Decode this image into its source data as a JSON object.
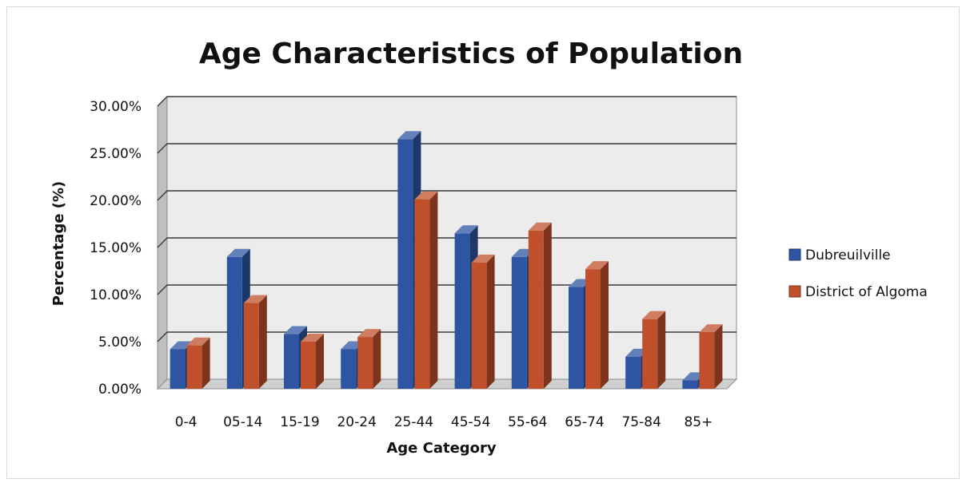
{
  "chart_data": {
    "type": "bar",
    "title": "Age Characteristics of Population",
    "xlabel": "Age Category",
    "ylabel": "Percentage (%)",
    "categories": [
      "0-4",
      "05-14",
      "15-19",
      "20-24",
      "25-44",
      "45-54",
      "55-64",
      "65-74",
      "75-84",
      "85+"
    ],
    "series": [
      {
        "name": "Dubreuilville",
        "color": "#2e55a1",
        "values": [
          4.2,
          14.0,
          5.8,
          4.2,
          26.5,
          16.5,
          14.0,
          10.8,
          3.4,
          0.9
        ]
      },
      {
        "name": "District of Algoma",
        "color": "#c0502b",
        "values": [
          4.6,
          9.1,
          5.0,
          5.5,
          20.1,
          13.4,
          16.8,
          12.7,
          7.4,
          6.0
        ]
      }
    ],
    "ylim": [
      0,
      30
    ],
    "yticks": [
      "0.00%",
      "5.00%",
      "10.00%",
      "15.00%",
      "20.00%",
      "25.00%",
      "30.00%"
    ],
    "grid": true,
    "legend_position": "right",
    "style": "3d-clustered-column"
  }
}
